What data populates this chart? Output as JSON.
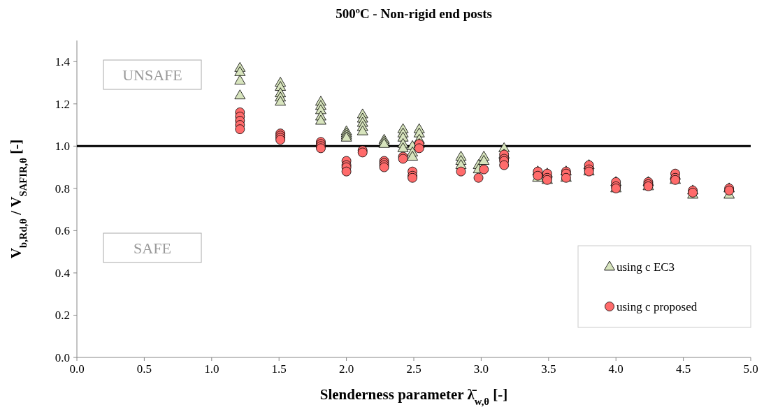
{
  "chart_data": {
    "type": "scatter",
    "title": "500ºC - Non-rigid end posts",
    "xlabel": "Slenderness parameter  λ̄$_{w,θ}$  [-]",
    "ylabel": "V$_{b,Rd,θ}$ / V$_{SAFIR,θ}$ [-]",
    "xlim": [
      0,
      5
    ],
    "ylim": [
      0,
      1.5
    ],
    "xticks": [
      {
        "value": 0,
        "label": "0.0"
      },
      {
        "value": 0.5,
        "label": "0.5"
      },
      {
        "value": 1,
        "label": "1.0"
      },
      {
        "value": 1.5,
        "label": "1.5"
      },
      {
        "value": 2,
        "label": "2.0"
      },
      {
        "value": 2.5,
        "label": "2.5"
      },
      {
        "value": 3,
        "label": "3.0"
      },
      {
        "value": 3.5,
        "label": "3.5"
      },
      {
        "value": 4,
        "label": "4.0"
      },
      {
        "value": 4.5,
        "label": "4.5"
      },
      {
        "value": 5,
        "label": "5.0"
      }
    ],
    "yticks": [
      {
        "value": 0,
        "label": "0.0"
      },
      {
        "value": 0.2,
        "label": "0.2"
      },
      {
        "value": 0.4,
        "label": "0.4"
      },
      {
        "value": 0.6,
        "label": "0.6"
      },
      {
        "value": 0.8,
        "label": "0.8"
      },
      {
        "value": 1,
        "label": "1.0"
      },
      {
        "value": 1.2,
        "label": "1.2"
      },
      {
        "value": 1.4,
        "label": "1.4"
      }
    ],
    "grid": false,
    "legend": "bottom right",
    "ref_lines": [
      {
        "axis": "y",
        "value": 1,
        "color": "#000000"
      }
    ],
    "annotations": [
      "UNSAFE",
      "SAFE"
    ],
    "series": [
      {
        "name": "using c EC3",
        "color": "#d7e4bd",
        "marker": "triangle",
        "x": [
          1.21,
          1.21,
          1.21,
          1.21,
          1.51,
          1.51,
          1.51,
          1.51,
          1.51,
          1.81,
          1.81,
          1.81,
          1.81,
          1.81,
          2.0,
          2.0,
          2.0,
          2.0,
          2.12,
          2.12,
          2.12,
          2.12,
          2.12,
          2.28,
          2.28,
          2.28,
          2.42,
          2.42,
          2.42,
          2.42,
          2.42,
          2.49,
          2.49,
          2.49,
          2.54,
          2.54,
          2.54,
          2.54,
          2.85,
          2.85,
          2.85,
          2.98,
          2.98,
          3.02,
          3.02,
          3.17,
          3.17,
          3.42,
          3.42,
          3.49,
          3.49,
          3.63,
          3.63,
          3.8,
          3.8,
          4.0,
          4.0,
          4.24,
          4.24,
          4.44,
          4.44,
          4.57,
          4.57,
          4.84,
          4.84
        ],
        "values": [
          1.37,
          1.35,
          1.31,
          1.24,
          1.3,
          1.28,
          1.25,
          1.23,
          1.21,
          1.21,
          1.19,
          1.17,
          1.14,
          1.12,
          1.07,
          1.06,
          1.05,
          1.04,
          1.15,
          1.13,
          1.11,
          1.09,
          1.07,
          1.03,
          1.02,
          1.01,
          1.08,
          1.06,
          1.04,
          1.01,
          0.99,
          1.0,
          0.97,
          0.95,
          1.08,
          1.06,
          1.03,
          1.01,
          0.95,
          0.93,
          0.91,
          0.91,
          0.89,
          0.95,
          0.93,
          0.99,
          0.96,
          0.88,
          0.85,
          0.87,
          0.84,
          0.88,
          0.85,
          0.91,
          0.88,
          0.83,
          0.8,
          0.83,
          0.81,
          0.86,
          0.84,
          0.79,
          0.77,
          0.8,
          0.77
        ]
      },
      {
        "name": "using c proposed",
        "color": "#ff6b6b",
        "marker": "circle",
        "x": [
          1.21,
          1.21,
          1.21,
          1.21,
          1.21,
          1.51,
          1.51,
          1.51,
          1.51,
          1.81,
          1.81,
          1.81,
          1.81,
          2.0,
          2.0,
          2.0,
          2.0,
          2.12,
          2.12,
          2.28,
          2.28,
          2.28,
          2.28,
          2.42,
          2.42,
          2.49,
          2.49,
          2.49,
          2.54,
          2.54,
          2.85,
          2.98,
          3.02,
          3.17,
          3.17,
          3.17,
          3.17,
          3.42,
          3.42,
          3.49,
          3.49,
          3.49,
          3.63,
          3.63,
          3.63,
          3.8,
          3.8,
          3.8,
          4.0,
          4.0,
          4.0,
          4.24,
          4.24,
          4.24,
          4.44,
          4.44,
          4.44,
          4.57,
          4.57,
          4.84,
          4.84
        ],
        "values": [
          1.16,
          1.14,
          1.12,
          1.1,
          1.08,
          1.06,
          1.05,
          1.04,
          1.03,
          1.02,
          1.01,
          1.0,
          0.99,
          0.93,
          0.91,
          0.9,
          0.88,
          0.98,
          0.97,
          0.93,
          0.92,
          0.91,
          0.9,
          0.95,
          0.94,
          0.88,
          0.86,
          0.85,
          1.01,
          0.99,
          0.88,
          0.85,
          0.89,
          0.96,
          0.94,
          0.93,
          0.91,
          0.88,
          0.86,
          0.87,
          0.85,
          0.84,
          0.88,
          0.87,
          0.85,
          0.91,
          0.89,
          0.88,
          0.83,
          0.81,
          0.8,
          0.83,
          0.82,
          0.81,
          0.87,
          0.85,
          0.84,
          0.79,
          0.78,
          0.8,
          0.79
        ]
      }
    ]
  }
}
